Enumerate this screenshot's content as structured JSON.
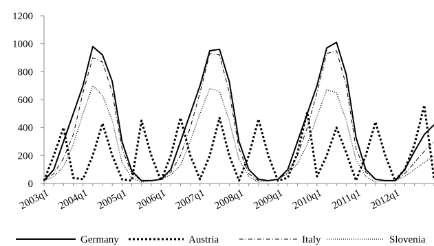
{
  "chart_data": {
    "type": "line",
    "x": [
      "2003q1",
      "2003q2",
      "2003q3",
      "2003q4",
      "2004q1",
      "2004q2",
      "2004q3",
      "2004q4",
      "2005q1",
      "2005q2",
      "2005q3",
      "2005q4",
      "2006q1",
      "2006q2",
      "2006q3",
      "2006q4",
      "2007q1",
      "2007q2",
      "2007q3",
      "2007q4",
      "2008q1",
      "2008q2",
      "2008q3",
      "2008q4",
      "2009q1",
      "2009q2",
      "2009q3",
      "2009q4",
      "2010q1",
      "2010q2",
      "2010q3",
      "2010q4",
      "2011q1",
      "2011q2",
      "2011q3",
      "2011q4",
      "2012q1",
      "2012q2",
      "2012q3",
      "2012q4",
      "2013q1"
    ],
    "x_tick_labels": [
      "2003q1",
      "2004q1",
      "2005q1",
      "2006q1",
      "2007q1",
      "2008q1",
      "2009q1",
      "2010q1",
      "2011q1",
      "2012q1"
    ],
    "ylim": [
      0,
      1200
    ],
    "y_ticks": [
      0,
      200,
      400,
      600,
      800,
      1000,
      1200
    ],
    "legend_position": "bottom",
    "grid": false,
    "series": [
      {
        "name": "Germany",
        "style": "solid",
        "color": "#000000",
        "values": [
          20,
          100,
          300,
          500,
          700,
          980,
          920,
          730,
          300,
          90,
          20,
          20,
          30,
          100,
          300,
          500,
          700,
          950,
          960,
          730,
          300,
          100,
          30,
          20,
          30,
          100,
          300,
          500,
          700,
          970,
          1010,
          780,
          330,
          100,
          30,
          20,
          20,
          100,
          230,
          350,
          420
        ]
      },
      {
        "name": "Austria",
        "style": "dotted",
        "color": "#000000",
        "values": [
          20,
          200,
          400,
          40,
          30,
          200,
          430,
          200,
          30,
          20,
          450,
          200,
          20,
          200,
          470,
          200,
          30,
          200,
          470,
          200,
          20,
          200,
          460,
          200,
          20,
          40,
          220,
          510,
          50,
          200,
          400,
          220,
          20,
          200,
          440,
          200,
          20,
          100,
          280,
          560,
          40
        ]
      },
      {
        "name": "Italy",
        "style": "dashdot",
        "color": "#000000",
        "values": [
          20,
          70,
          180,
          350,
          650,
          900,
          870,
          650,
          250,
          70,
          20,
          20,
          30,
          80,
          200,
          400,
          650,
          930,
          920,
          650,
          250,
          70,
          20,
          20,
          30,
          80,
          200,
          400,
          650,
          930,
          950,
          700,
          250,
          80,
          30,
          20,
          20,
          70,
          150,
          230,
          300
        ]
      },
      {
        "name": "Slovenia",
        "style": "fine-dotted",
        "color": "#000000",
        "values": [
          20,
          50,
          120,
          280,
          500,
          700,
          630,
          450,
          150,
          40,
          10,
          20,
          30,
          60,
          130,
          300,
          500,
          680,
          660,
          450,
          170,
          50,
          10,
          20,
          30,
          70,
          140,
          280,
          480,
          670,
          650,
          450,
          170,
          50,
          10,
          20,
          20,
          50,
          100,
          150,
          200
        ]
      }
    ]
  }
}
